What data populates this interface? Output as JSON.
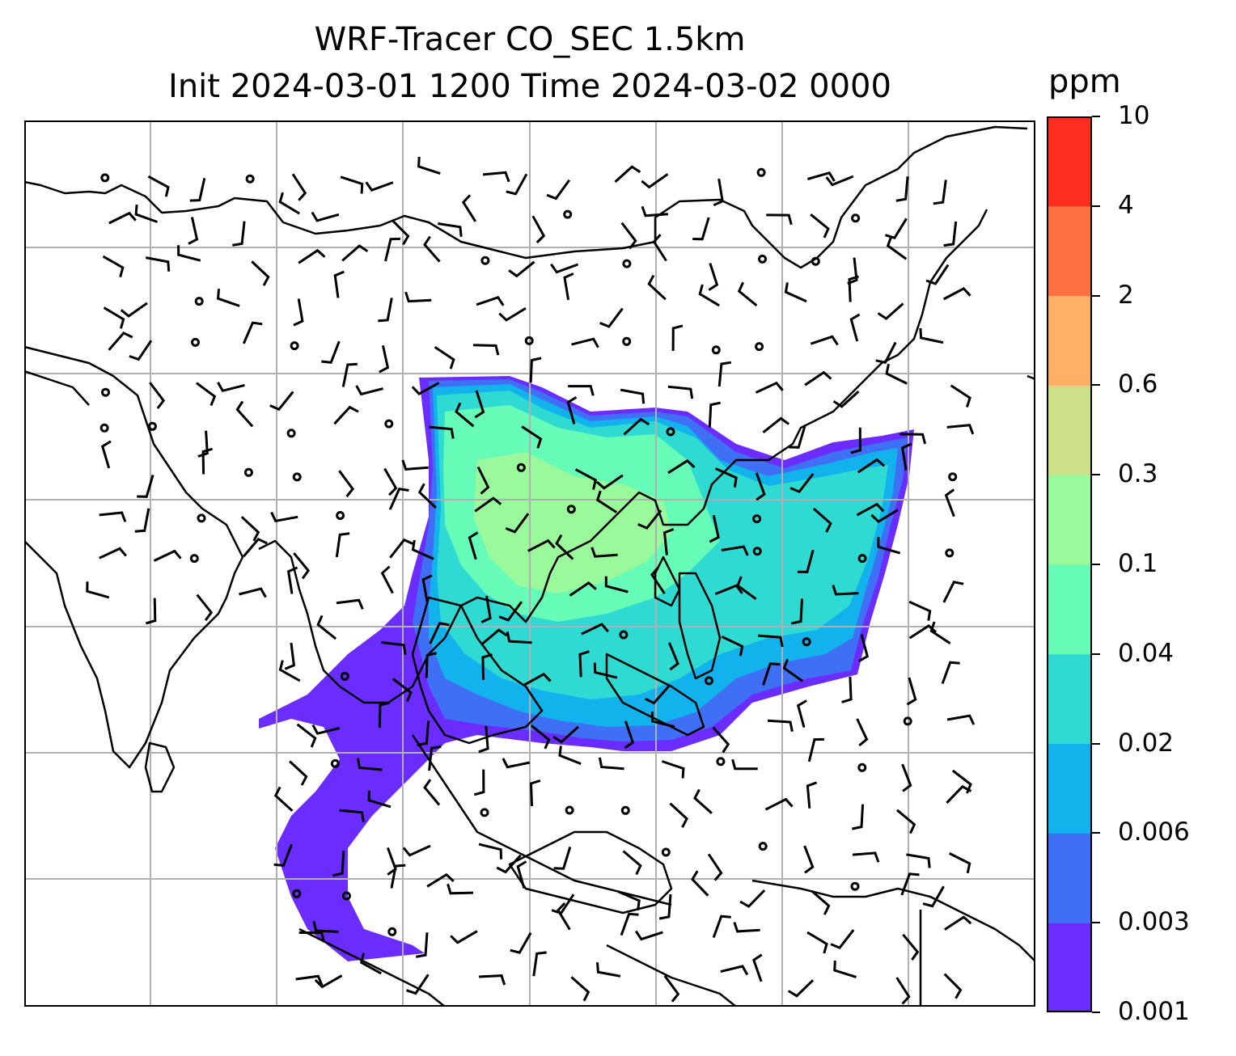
{
  "title": {
    "line1": "WRF-Tracer CO_SEC 1.5km",
    "line2": "Init 2024-03-01 1200 Time 2024-03-02 0000"
  },
  "colorbar": {
    "units": "ppm",
    "levels": [
      "0.001",
      "0.003",
      "0.006",
      "0.02",
      "0.04",
      "0.1",
      "0.3",
      "0.6",
      "2",
      "4",
      "10"
    ],
    "colors": [
      "#6a2cff",
      "#3f6ff5",
      "#12b2ec",
      "#2fdad2",
      "#66fbb6",
      "#9af99b",
      "#cce08a",
      "#feb066",
      "#ff7143",
      "#ff2d1e"
    ]
  },
  "map": {
    "gridlines": true,
    "grid_color": "#b0b0b0",
    "coastline_color": "#000000",
    "field": "CO_SEC tracer concentration with wind barbs"
  }
}
